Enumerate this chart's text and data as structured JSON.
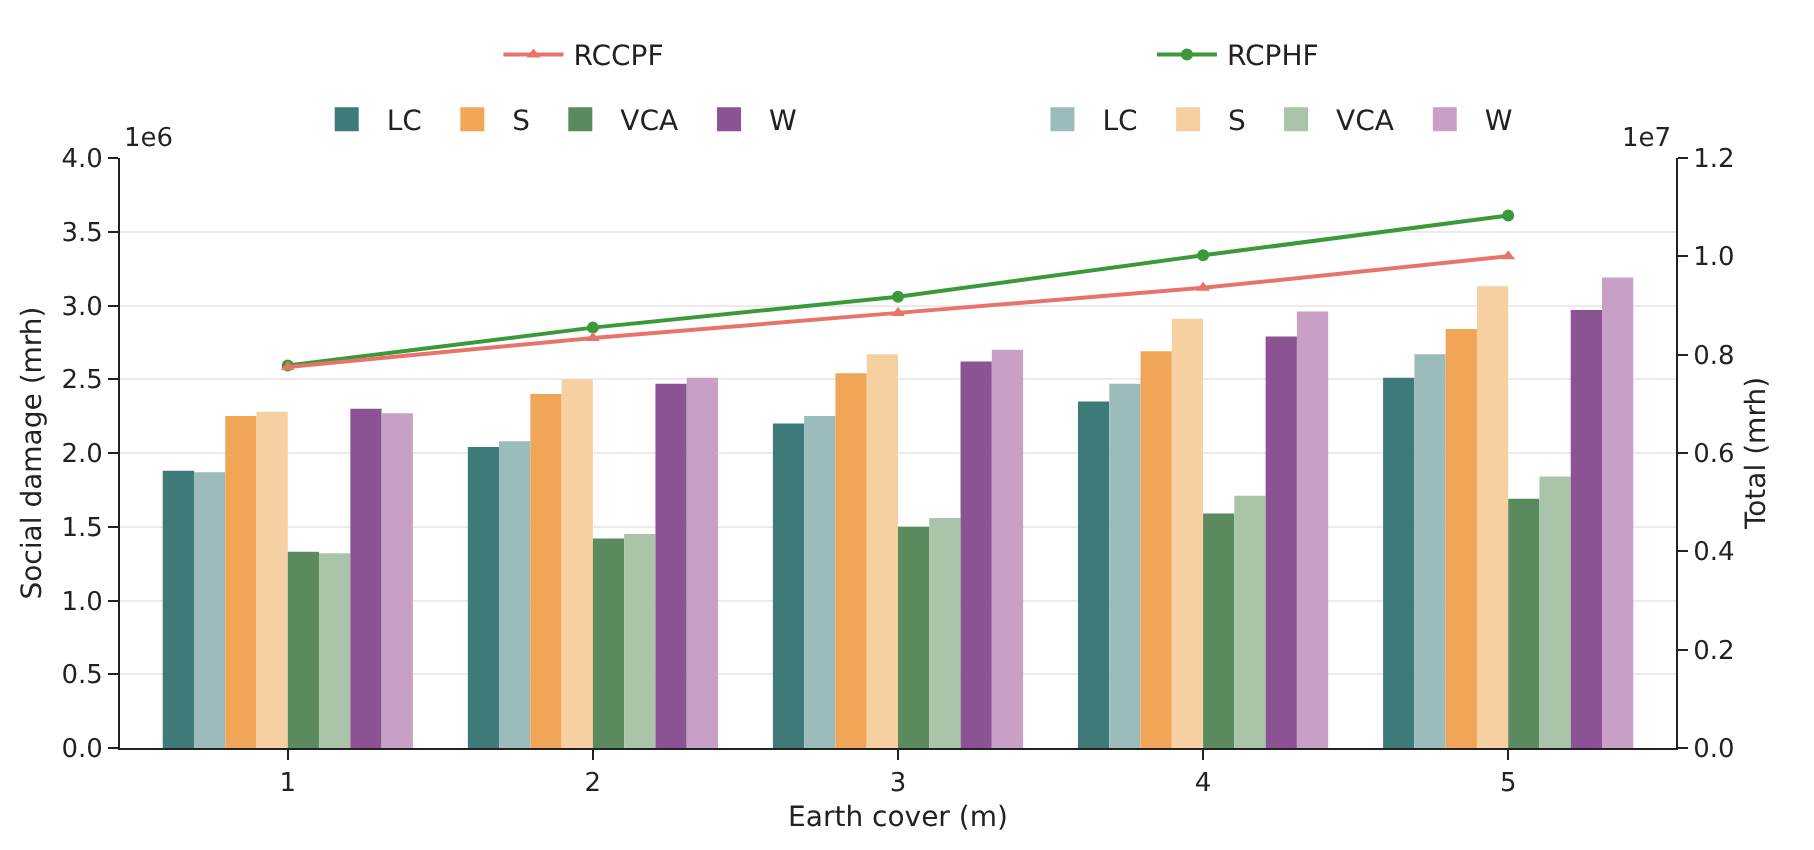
{
  "chart_data": {
    "type": "bar",
    "xlabel": "Earth cover (m)",
    "ylabel": "Social damage (mrh)",
    "y2label": "Total (mrh)",
    "categories": [
      "1",
      "2",
      "3",
      "4",
      "5"
    ],
    "series": [
      {
        "name": "LC",
        "color": "#3d7a78",
        "values": [
          1.88,
          2.04,
          2.2,
          2.35,
          2.51
        ]
      },
      {
        "name": "S",
        "color": "#f0a656",
        "values": [
          2.25,
          2.4,
          2.54,
          2.69,
          2.84
        ]
      },
      {
        "name": "VCA",
        "color": "#5a8a5e",
        "values": [
          1.33,
          1.42,
          1.5,
          1.59,
          1.69
        ]
      },
      {
        "name": "W",
        "color": "#8b5394",
        "values": [
          2.3,
          2.47,
          2.62,
          2.79,
          2.97
        ]
      },
      {
        "name": "LC",
        "color": "#9bbcba",
        "values": [
          1.87,
          2.08,
          2.25,
          2.47,
          2.67
        ]
      },
      {
        "name": "S",
        "color": "#f7d0a2",
        "values": [
          2.28,
          2.5,
          2.67,
          2.91,
          3.13
        ]
      },
      {
        "name": "VCA",
        "color": "#a9c4a8",
        "values": [
          1.32,
          1.45,
          1.56,
          1.71,
          1.84
        ]
      },
      {
        "name": "W",
        "color": "#c8a0c6",
        "values": [
          2.27,
          2.51,
          2.7,
          2.96,
          3.19
        ]
      },
      {
        "name": "RCCPF",
        "type": "line",
        "axis": "y2",
        "marker": "triangle",
        "color": "#e8736a",
        "values": [
          0.775,
          0.834,
          0.885,
          0.936,
          1.0
        ]
      },
      {
        "name": "RCPHF",
        "type": "line",
        "axis": "y2",
        "marker": "circle",
        "color": "#3a9a3a",
        "values": [
          0.778,
          0.855,
          0.918,
          1.002,
          1.083
        ]
      }
    ],
    "ylim": [
      0,
      4.0
    ],
    "yticks": [
      {
        "value": 0,
        "label": "0.0"
      },
      0.5,
      {
        "value": 1,
        "label": "1.0"
      },
      1.5,
      {
        "value": 2,
        "label": "2.0"
      },
      2.5,
      {
        "value": 3,
        "label": "3.0"
      },
      3.5,
      {
        "value": 4,
        "label": "4.0"
      }
    ],
    "y2lim": [
      0,
      1.2
    ],
    "y2ticks": [
      {
        "value": 0,
        "label": "0.0"
      },
      0.2,
      0.4,
      0.6,
      0.8,
      {
        "value": 1,
        "label": "1.0"
      },
      1.2
    ],
    "annotations": [
      "1e6",
      "1e7"
    ],
    "grid": "y",
    "legend": "top"
  }
}
